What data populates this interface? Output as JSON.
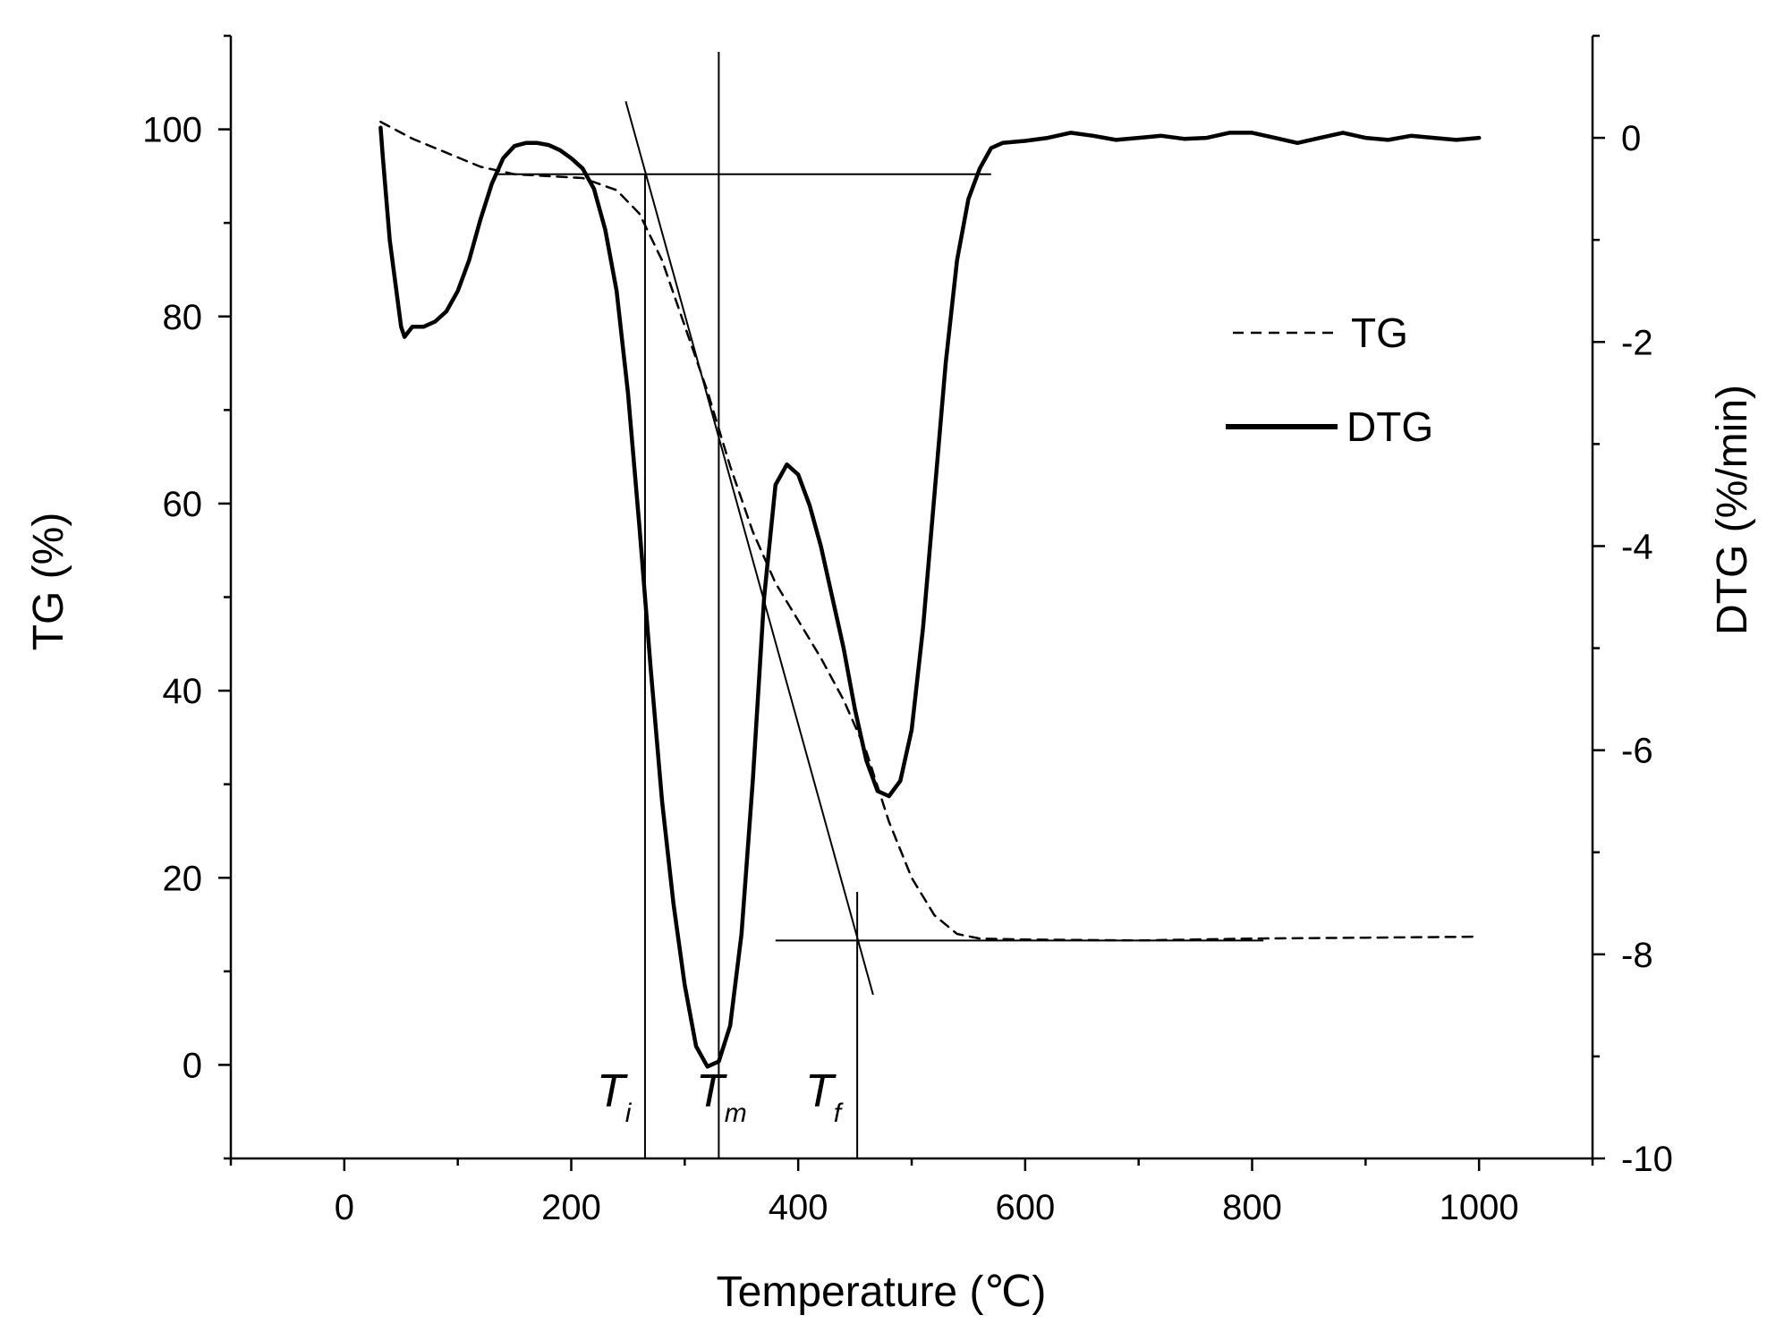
{
  "chart_data": {
    "type": "line",
    "xlabel": "Temperature (℃)",
    "ylabel_left": "TG (%)",
    "ylabel_right": "DTG (%/min)",
    "xlim": [
      -100,
      1100
    ],
    "ylim_left": [
      -10,
      110
    ],
    "ylim_right": [
      -10,
      1
    ],
    "x_ticks": [
      0,
      200,
      400,
      600,
      800,
      1000
    ],
    "x_tick_labels": [
      "0",
      "200",
      "400",
      "600",
      "800",
      "1000"
    ],
    "y_left_ticks": [
      0,
      20,
      40,
      60,
      80,
      100
    ],
    "y_left_tick_labels": [
      "0",
      "20",
      "40",
      "60",
      "80",
      "100"
    ],
    "y_right_ticks": [
      0,
      -2,
      -4,
      -6,
      -8,
      -10
    ],
    "y_right_tick_labels": [
      "0",
      "-2",
      "-4",
      "-6",
      "-8",
      "-10"
    ],
    "legend": {
      "position": "top-right",
      "entries": [
        {
          "label": "TG",
          "style": "dashed"
        },
        {
          "label": "DTG",
          "style": "solid-thick"
        }
      ]
    },
    "series": [
      {
        "name": "TG",
        "axis": "left",
        "style": "dashed",
        "x": [
          32,
          60,
          90,
          120,
          150,
          180,
          210,
          240,
          260,
          280,
          300,
          320,
          340,
          360,
          380,
          400,
          420,
          440,
          460,
          480,
          500,
          520,
          540,
          560,
          600,
          700,
          800,
          900,
          1000
        ],
        "y": [
          100.8,
          99.0,
          97.5,
          96.0,
          95.2,
          95.0,
          94.8,
          93.5,
          91.0,
          86.0,
          79.0,
          72.0,
          64.0,
          57.0,
          51.5,
          47.5,
          43.5,
          39.0,
          33.5,
          26.0,
          20.0,
          16.0,
          14.0,
          13.5,
          13.4,
          13.3,
          13.5,
          13.6,
          13.7
        ]
      },
      {
        "name": "DTG",
        "axis": "right",
        "style": "solid-thick",
        "x": [
          32,
          34,
          40,
          50,
          53,
          60,
          70,
          80,
          90,
          100,
          110,
          120,
          130,
          140,
          150,
          160,
          170,
          180,
          190,
          200,
          210,
          220,
          230,
          240,
          250,
          260,
          270,
          280,
          290,
          300,
          310,
          320,
          330,
          340,
          350,
          360,
          370,
          380,
          390,
          400,
          410,
          420,
          430,
          440,
          450,
          460,
          470,
          480,
          490,
          500,
          510,
          520,
          530,
          540,
          550,
          560,
          570,
          580,
          600,
          620,
          640,
          660,
          680,
          700,
          720,
          740,
          760,
          780,
          800,
          820,
          840,
          860,
          880,
          900,
          920,
          940,
          960,
          980,
          1000
        ],
        "y": [
          0.1,
          -0.2,
          -1.0,
          -1.85,
          -1.95,
          -1.85,
          -1.85,
          -1.8,
          -1.7,
          -1.5,
          -1.2,
          -0.8,
          -0.45,
          -0.2,
          -0.08,
          -0.05,
          -0.05,
          -0.07,
          -0.12,
          -0.2,
          -0.3,
          -0.5,
          -0.9,
          -1.5,
          -2.5,
          -3.8,
          -5.2,
          -6.5,
          -7.5,
          -8.3,
          -8.9,
          -9.1,
          -9.05,
          -8.7,
          -7.8,
          -6.3,
          -4.5,
          -3.4,
          -3.2,
          -3.3,
          -3.6,
          -4.0,
          -4.5,
          -5.0,
          -5.6,
          -6.1,
          -6.4,
          -6.45,
          -6.3,
          -5.8,
          -4.8,
          -3.5,
          -2.2,
          -1.2,
          -0.6,
          -0.3,
          -0.1,
          -0.05,
          -0.03,
          0.0,
          0.05,
          0.02,
          -0.02,
          0.0,
          0.02,
          -0.01,
          0.0,
          0.05,
          0.05,
          0.0,
          -0.05,
          0.0,
          0.05,
          0.0,
          -0.02,
          0.02,
          0.0,
          -0.02,
          0.0
        ]
      }
    ],
    "annotations": {
      "Ti": {
        "x": 265,
        "letter": "T",
        "sub": "i"
      },
      "Tm": {
        "x": 330,
        "letter": "T",
        "sub": "m"
      },
      "Tf": {
        "x": 452,
        "letter": "T",
        "sub": "f"
      },
      "baseline_upper_tg": 95.2,
      "baseline_lower_tg": 13.3,
      "tangent_line": {
        "x": [
          248,
          466
        ],
        "y": [
          103,
          7.5
        ]
      }
    }
  }
}
